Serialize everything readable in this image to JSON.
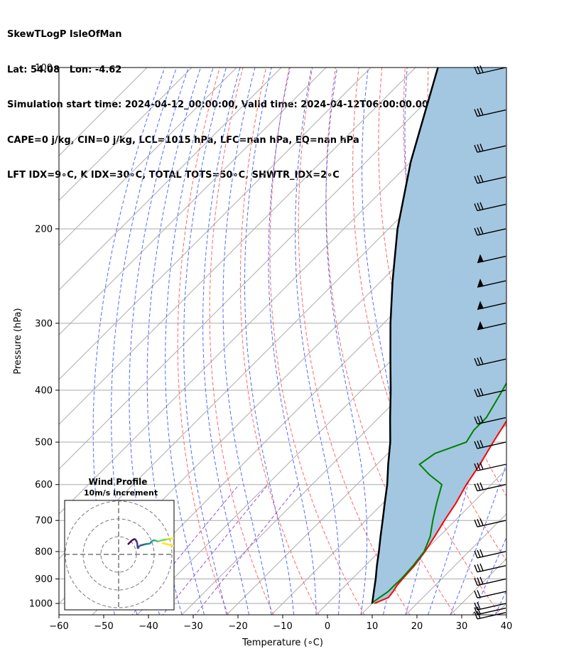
{
  "header": {
    "lines": [
      "SkewTLogP IsleOfMan",
      "Lat: 54.08   Lon: -4.62",
      "Simulation start time: 2024-04-12_00:00:00, Valid time: 2024-04-12T06:00:00.00",
      "CAPE=0 j/kg, CIN=0 j/kg, LCL=1015 hPa, LFC=nan hPa, EQ=nan hPa",
      "LFT IDX=9∘C, K IDX=30∘C, TOTAL TOTS=50∘C, SHWTR_IDX=2∘C"
    ]
  },
  "chart_data": {
    "type": "line",
    "xlabel": "Temperature (∘C)",
    "ylabel": "Pressure (hPa)",
    "xlim": [
      -60,
      40
    ],
    "ylim": [
      1050,
      100
    ],
    "y_scale": "log",
    "xticks": [
      -60,
      -50,
      -40,
      -30,
      -20,
      -10,
      0,
      10,
      20,
      30,
      40
    ],
    "yticks": [
      100,
      200,
      300,
      400,
      500,
      600,
      700,
      800,
      900,
      1000
    ],
    "grid": true,
    "colors": {
      "temperature": "#ff0000",
      "dewpoint": "#008000",
      "parcel": "#000000",
      "cape_fill": "#a3c7e0",
      "dry_adiabats": "#ff6666",
      "moist_adiabats": "#4f6bff",
      "mixing_ratio": "#9c4fd8",
      "isotherms": "#aaaaaa"
    },
    "series": [
      {
        "id": "temperature",
        "points": [
          [
            1000,
            10.5
          ],
          [
            975,
            12.3
          ],
          [
            950,
            12.0
          ],
          [
            925,
            11.5
          ],
          [
            900,
            11.3
          ],
          [
            850,
            11.0
          ],
          [
            800,
            10.2
          ],
          [
            750,
            9.0
          ],
          [
            700,
            7.6
          ],
          [
            650,
            6.3
          ],
          [
            600,
            4.5
          ],
          [
            550,
            3.0
          ],
          [
            500,
            1.0
          ],
          [
            450,
            -1.0
          ],
          [
            400,
            -3.8
          ],
          [
            375,
            -5.0
          ],
          [
            350,
            -6.0
          ],
          [
            325,
            -7.0
          ],
          [
            300,
            -8.0
          ],
          [
            275,
            -10.0
          ],
          [
            250,
            -11.0
          ],
          [
            225,
            -8.0
          ],
          [
            200,
            -5.0
          ],
          [
            175,
            -2.0
          ],
          [
            160,
            0.5
          ],
          [
            150,
            2.0
          ],
          [
            140,
            2.5
          ],
          [
            125,
            2.0
          ],
          [
            110,
            2.0
          ],
          [
            100,
            2.0
          ]
        ]
      },
      {
        "id": "dewpoint",
        "points": [
          [
            1000,
            9.8
          ],
          [
            975,
            10.3
          ],
          [
            950,
            10.9
          ],
          [
            925,
            10.9
          ],
          [
            900,
            11.0
          ],
          [
            850,
            10.7
          ],
          [
            800,
            10.0
          ],
          [
            750,
            8.0
          ],
          [
            700,
            5.0
          ],
          [
            650,
            2.0
          ],
          [
            600,
            -1.0
          ],
          [
            575,
            -6.0
          ],
          [
            550,
            -10.5
          ],
          [
            525,
            -9.5
          ],
          [
            500,
            -5.0
          ],
          [
            475,
            -6.0
          ],
          [
            450,
            -6.0
          ],
          [
            400,
            -8.5
          ],
          [
            375,
            -10.0
          ],
          [
            350,
            -10.0
          ],
          [
            325,
            -11.0
          ],
          [
            300,
            -13.0
          ],
          [
            280,
            -16.0
          ],
          [
            260,
            -17.5
          ],
          [
            240,
            -18.0
          ],
          [
            220,
            -21.0
          ],
          [
            200,
            -25.0
          ],
          [
            185,
            -28.0
          ],
          [
            170,
            -30.0
          ],
          [
            150,
            -29.0
          ],
          [
            130,
            -23.0
          ],
          [
            115,
            -17.0
          ],
          [
            100,
            -12.0
          ]
        ]
      },
      {
        "id": "parcel",
        "points": [
          [
            1000,
            10.0
          ],
          [
            950,
            7.7
          ],
          [
            900,
            5.3
          ],
          [
            850,
            2.6
          ],
          [
            800,
            -0.1
          ],
          [
            750,
            -3.1
          ],
          [
            700,
            -6.2
          ],
          [
            650,
            -9.6
          ],
          [
            600,
            -13.2
          ],
          [
            550,
            -17.5
          ],
          [
            500,
            -22.0
          ],
          [
            450,
            -27.5
          ],
          [
            400,
            -33.5
          ],
          [
            350,
            -40.5
          ],
          [
            300,
            -48.5
          ],
          [
            250,
            -57.5
          ],
          [
            200,
            -68.0
          ],
          [
            150,
            -80.0
          ],
          [
            100,
            -95.0
          ]
        ]
      }
    ],
    "wind_barbs": {
      "levels": [
        1040,
        1020,
        1000,
        950,
        900,
        850,
        800,
        700,
        600,
        550,
        500,
        450,
        400,
        350,
        300,
        275,
        250,
        225,
        200,
        180,
        160,
        140,
        120,
        100
      ]
    },
    "inset": {
      "title": "Wind Profile",
      "subtitle": "10m/s increment"
    }
  }
}
